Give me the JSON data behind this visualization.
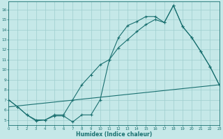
{
  "xlabel": "Humidex (Indice chaleur)",
  "xlim": [
    0,
    23
  ],
  "ylim": [
    4.5,
    16.8
  ],
  "yticks": [
    5,
    6,
    7,
    8,
    9,
    10,
    11,
    12,
    13,
    14,
    15,
    16
  ],
  "xticks": [
    0,
    1,
    2,
    3,
    4,
    5,
    6,
    7,
    8,
    9,
    10,
    11,
    12,
    13,
    14,
    15,
    16,
    17,
    18,
    19,
    20,
    21,
    22,
    23
  ],
  "background_color": "#c5e8e8",
  "line_color": "#1a7070",
  "grid_color": "#9ecece",
  "line1_x": [
    0,
    1,
    2,
    3,
    4,
    5,
    6,
    7,
    8,
    9,
    10,
    11,
    12,
    13,
    14,
    15,
    16,
    17,
    18,
    19,
    20,
    21,
    22,
    23
  ],
  "line1_y": [
    7.0,
    6.3,
    5.5,
    4.9,
    5.0,
    5.4,
    5.4,
    4.8,
    5.5,
    5.5,
    7.0,
    11.0,
    13.2,
    14.4,
    14.8,
    15.3,
    15.3,
    14.7,
    16.4,
    14.3,
    13.2,
    11.8,
    10.3,
    8.5
  ],
  "line2_x": [
    0,
    1,
    2,
    3,
    4,
    5,
    6,
    7,
    8,
    9,
    10,
    11,
    12,
    13,
    14,
    15,
    16,
    17,
    18,
    19,
    20,
    21,
    22,
    23
  ],
  "line2_y": [
    7.0,
    6.3,
    5.5,
    5.0,
    5.0,
    5.5,
    5.5,
    7.0,
    8.5,
    9.5,
    10.5,
    11.0,
    12.2,
    13.0,
    13.8,
    14.5,
    15.0,
    14.7,
    16.4,
    14.3,
    13.2,
    11.8,
    10.3,
    8.5
  ],
  "line3_x": [
    0,
    23
  ],
  "line3_y": [
    6.3,
    8.5
  ]
}
